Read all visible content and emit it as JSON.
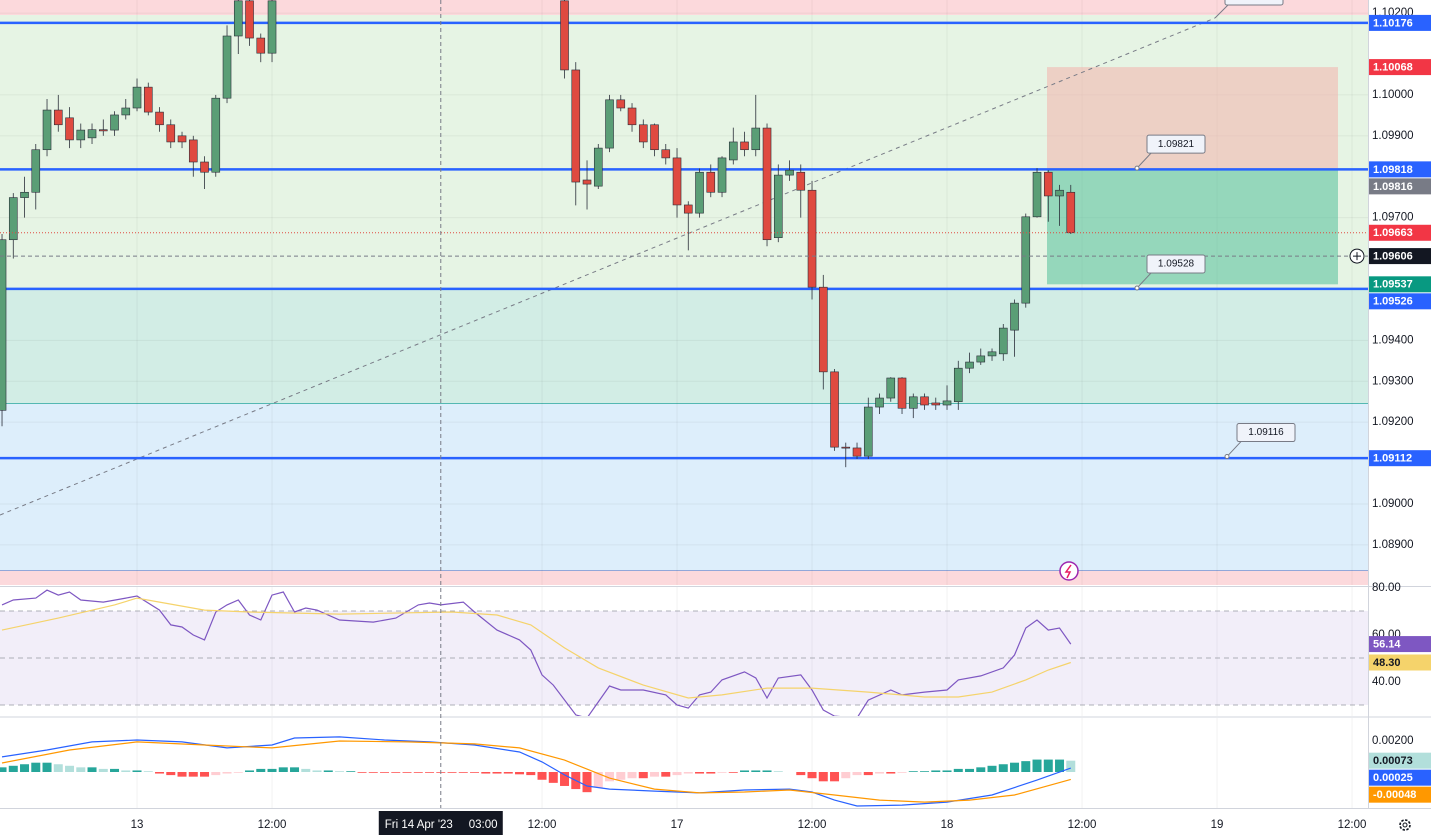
{
  "chart_data": [
    {
      "type": "candlestick",
      "open": [
        1.09229,
        1.09646,
        1.09749,
        1.09762,
        1.09866,
        1.09963,
        1.09944,
        1.0989,
        1.09895,
        1.09915,
        1.09914,
        1.09951,
        1.09968,
        1.10019,
        1.09958,
        1.09927,
        1.099,
        1.0989,
        1.09836,
        1.09811,
        1.09992,
        1.10144,
        1.1023,
        1.10139,
        1.10102,
        null,
        null,
        null,
        null,
        null,
        null,
        null,
        null,
        null,
        null,
        null,
        null,
        null,
        null,
        null,
        null,
        null,
        null,
        null,
        null,
        null,
        null,
        null,
        null,
        null,
        1.1023,
        1.10061,
        1.09792,
        1.09777,
        1.0987,
        1.09988,
        1.09968,
        1.09927,
        1.09927,
        1.09866,
        1.09846,
        1.09731,
        1.09711,
        1.09811,
        1.09762,
        1.09841,
        1.09885,
        1.09866,
        1.09919,
        1.09651,
        1.09804,
        1.09811,
        1.09767,
        1.0953,
        1.09323,
        1.09139,
        1.09137,
        1.09117,
        1.09237,
        1.09259,
        1.09308,
        1.09234,
        1.09262,
        1.09247,
        1.09242,
        1.0925,
        1.09332,
        1.09347,
        1.09362,
        1.09367,
        1.09425,
        1.09491,
        1.09702,
        1.09811,
        1.09753,
        1.09762
      ],
      "high": [
        1.0966,
        1.0976,
        1.098,
        1.0988,
        1.0999,
        1.1,
        1.0997,
        1.0993,
        1.0993,
        1.0994,
        1.0996,
        1.0999,
        1.1004,
        1.1003,
        1.0997,
        1.0994,
        1.0991,
        1.099,
        1.0985,
        1.1,
        1.1017,
        1.1025,
        1.1025,
        1.1015,
        1.1025,
        null,
        null,
        null,
        null,
        null,
        null,
        null,
        null,
        null,
        null,
        null,
        null,
        null,
        null,
        null,
        null,
        null,
        null,
        null,
        null,
        null,
        null,
        null,
        null,
        null,
        1.1025,
        1.1008,
        1.0984,
        1.0988,
        1.1,
        1.1,
        1.0998,
        1.0994,
        1.0993,
        1.0988,
        1.0987,
        1.0974,
        1.0982,
        1.0983,
        1.0985,
        1.0992,
        1.0991,
        1.1,
        1.0993,
        1.0983,
        1.0984,
        1.0983,
        1.0979,
        1.0956,
        1.0933,
        1.0915,
        1.0915,
        1.0926,
        1.0927,
        1.0931,
        1.0931,
        1.0927,
        1.0927,
        1.0926,
        1.0929,
        1.0935,
        1.0937,
        1.0938,
        1.0938,
        1.0944,
        1.095,
        1.0971,
        1.09821,
        1.09816,
        1.0978,
        1.0978
      ],
      "low": [
        1.0919,
        1.096,
        1.097,
        1.0972,
        1.0985,
        1.0991,
        1.0987,
        1.0987,
        1.0988,
        1.099,
        1.099,
        1.0994,
        1.0996,
        1.0995,
        1.0991,
        1.0987,
        1.0987,
        1.098,
        1.0977,
        1.098,
        1.0998,
        1.101,
        1.1012,
        1.1008,
        1.1008,
        null,
        null,
        null,
        null,
        null,
        null,
        null,
        null,
        null,
        null,
        null,
        null,
        null,
        null,
        null,
        null,
        null,
        null,
        null,
        null,
        null,
        null,
        null,
        null,
        null,
        1.1004,
        1.0973,
        1.0972,
        1.0977,
        1.0986,
        1.0996,
        1.0991,
        1.0987,
        1.0985,
        1.0983,
        1.097,
        1.0962,
        1.097,
        1.0975,
        1.0975,
        1.0983,
        1.0985,
        1.0985,
        1.0963,
        1.0964,
        1.0979,
        1.097,
        1.095,
        1.0928,
        1.0913,
        1.0909,
        1.0911,
        1.0911,
        1.0922,
        1.0925,
        1.0922,
        1.0921,
        1.0923,
        1.0923,
        1.0923,
        1.0923,
        1.0932,
        1.0934,
        1.0935,
        1.0935,
        1.0936,
        1.0948,
        1.097,
        1.0969,
        1.0968,
        1.0966
      ],
      "close": [
        1.09646,
        1.09749,
        1.09762,
        1.09866,
        1.09963,
        1.09927,
        1.0989,
        1.09914,
        1.09915,
        1.09912,
        1.09951,
        1.09968,
        1.10019,
        1.09958,
        1.09927,
        1.09885,
        1.09885,
        1.09836,
        1.09811,
        1.09992,
        1.10144,
        1.1023,
        1.10139,
        1.10102,
        1.1023,
        null,
        null,
        null,
        null,
        null,
        null,
        null,
        null,
        null,
        null,
        null,
        null,
        null,
        null,
        null,
        null,
        null,
        null,
        null,
        null,
        null,
        null,
        null,
        null,
        null,
        1.10061,
        1.09787,
        1.09782,
        1.0987,
        1.09988,
        1.09968,
        1.09927,
        1.09885,
        1.09866,
        1.09846,
        1.09731,
        1.09711,
        1.09811,
        1.09762,
        1.09846,
        1.09885,
        1.09866,
        1.09919,
        1.09646,
        1.09804,
        1.09816,
        1.09767,
        1.0953,
        1.09323,
        1.09139,
        1.09137,
        1.09117,
        1.09237,
        1.09259,
        1.09308,
        1.09234,
        1.09262,
        1.09242,
        1.09242,
        1.09252,
        1.09332,
        1.09347,
        1.09362,
        1.09372,
        1.0943,
        1.09491,
        1.09702,
        1.09811,
        1.09753,
        1.09767,
        1.09663
      ],
      "up_color": "#5a9e76",
      "down_color": "#df4a40",
      "ylim": [
        1.08802,
        1.10232
      ],
      "yticks": [
        {
          "value": 1.102,
          "label": "1.10200"
        },
        {
          "value": 1.1,
          "label": "1.10000"
        },
        {
          "value": 1.099,
          "label": "1.09900"
        },
        {
          "value": 1.097,
          "label": "1.09700"
        },
        {
          "value": 1.094,
          "label": "1.09400"
        },
        {
          "value": 1.093,
          "label": "1.09300"
        },
        {
          "value": 1.092,
          "label": "1.09200"
        },
        {
          "value": 1.09,
          "label": "1.09000"
        },
        {
          "value": 1.089,
          "label": "1.08900"
        }
      ],
      "xlim": [
        -0.18,
        121.42
      ],
      "xticks": [
        {
          "value": 12,
          "label": "13"
        },
        {
          "value": 24,
          "label": "12:00"
        },
        {
          "value": 48,
          "label": "12:00"
        },
        {
          "value": 60,
          "label": "17"
        },
        {
          "value": 72,
          "label": "12:00"
        },
        {
          "value": 84,
          "label": "18"
        },
        {
          "value": 96,
          "label": "12:00"
        },
        {
          "value": 108,
          "label": "19"
        },
        {
          "value": 120,
          "label": "12:00"
        }
      ],
      "crosshair": {
        "x": 39,
        "label": "Fri 14 Apr '23",
        "time": "03:00",
        "price": 1.09606
      },
      "levels": [
        1.10176,
        1.09818,
        1.09526,
        1.09112
      ],
      "level_color": "#2962ff",
      "position": {
        "entry": 1.09816,
        "stop": 1.10068,
        "target": 1.09537
      },
      "callouts": [
        1.09821,
        1.09528,
        1.09116
      ],
      "grid": true
    },
    {
      "type": "line",
      "series": [
        {
          "color": "#7e57c2",
          "x": [
            0,
            1,
            3,
            4,
            5,
            6,
            7,
            9,
            11,
            12,
            14,
            15,
            16,
            17,
            18,
            19,
            20,
            21,
            22,
            23,
            24,
            25,
            26,
            27,
            28,
            30,
            33,
            35,
            37,
            38,
            39,
            41,
            42,
            44,
            46,
            47,
            48,
            49,
            51,
            52,
            54,
            55,
            57,
            59,
            60,
            61,
            62,
            63,
            64,
            66,
            67,
            68,
            69,
            71,
            72,
            73,
            74,
            76,
            77,
            79,
            80,
            82,
            84,
            85,
            87,
            89,
            90,
            91,
            92,
            93,
            94,
            95
          ],
          "values": [
            72.8,
            74.9,
            75.7,
            79.1,
            77,
            78.3,
            74.9,
            74,
            75.7,
            76.6,
            70.6,
            64.3,
            63.4,
            60,
            57.9,
            69.8,
            72.8,
            74.9,
            68.5,
            66.4,
            77,
            78.3,
            69.8,
            71.5,
            70.6,
            66.4,
            65.5,
            67.2,
            72.8,
            73.6,
            72.8,
            74,
            69.8,
            62.1,
            57.9,
            53.6,
            43,
            38.7,
            26,
            24.7,
            38.3,
            36.6,
            36.6,
            34.5,
            30.2,
            28.9,
            34.5,
            35.7,
            40.9,
            44.3,
            41.7,
            33.2,
            41.7,
            43,
            36.6,
            28.1,
            25.5,
            24.7,
            32.3,
            36.6,
            34.5,
            35.7,
            36.6,
            40.9,
            42.6,
            46,
            51.5,
            63,
            66.4,
            62.1,
            63,
            56.14
          ]
        },
        {
          "color": "#f5d36b",
          "x": [
            0,
            5,
            10,
            12,
            14,
            18,
            22,
            30,
            40,
            44,
            47,
            50,
            53,
            57,
            61,
            64,
            68,
            72,
            77,
            82,
            85,
            88,
            91,
            93,
            95
          ],
          "values": [
            62.1,
            67.2,
            72.8,
            75.7,
            74,
            70.6,
            69.8,
            68.9,
            69.8,
            68.5,
            64.3,
            54.5,
            46,
            38.7,
            33.2,
            34.5,
            37.4,
            37.4,
            35.7,
            33.6,
            33.6,
            35.7,
            40.9,
            45.1,
            48.3
          ],
          "value_labels": [
            null,
            null,
            null,
            null,
            null,
            null,
            null,
            null,
            null,
            null,
            null,
            null,
            null,
            null,
            null,
            null,
            null,
            null,
            null,
            null,
            null,
            null,
            null,
            null,
            "48.30"
          ]
        }
      ],
      "ylim": [
        25.53,
        81.28
      ],
      "yticks": [
        {
          "value": 80,
          "label": "80.00"
        },
        {
          "value": 60,
          "label": "60.00"
        },
        {
          "value": 40,
          "label": "40.00"
        }
      ]
    },
    {
      "type": "macd",
      "series": [
        {
          "color": "#2962ff",
          "x": [
            0,
            4,
            8,
            12,
            16,
            20,
            24,
            26,
            30,
            34,
            38,
            42,
            46,
            48,
            50,
            52,
            54,
            58,
            62,
            66,
            70,
            72,
            74,
            76,
            80,
            84,
            88,
            92,
            95
          ],
          "values": [
            0.00097,
            0.00142,
            0.00194,
            0.00206,
            0.00194,
            0.00155,
            0.00174,
            0.00219,
            0.00226,
            0.00206,
            0.00194,
            0.00174,
            0.00129,
            0.00065,
            -0.00019,
            -0.0009,
            -0.0011,
            -0.00123,
            -0.00135,
            -0.00116,
            -0.0011,
            -0.00129,
            -0.00181,
            -0.00219,
            -0.00213,
            -0.00194,
            -0.00148,
            -0.00052,
            0.00025
          ]
        },
        {
          "color": "#ff9800",
          "x": [
            0,
            6,
            12,
            18,
            24,
            30,
            36,
            42,
            46,
            50,
            54,
            58,
            62,
            66,
            70,
            74,
            78,
            82,
            86,
            90,
            95
          ],
          "values": [
            0.00058,
            0.00142,
            0.00194,
            0.00174,
            0.00155,
            0.002,
            0.00194,
            0.00181,
            0.00155,
            0.00077,
            -0.00039,
            -0.0011,
            -0.00135,
            -0.00129,
            -0.00116,
            -0.00148,
            -0.00181,
            -0.00194,
            -0.00181,
            -0.00148,
            -0.00048
          ]
        }
      ],
      "histogram": [
        0.0003,
        0.0004,
        0.0005,
        0.0006,
        0.0006,
        0.0005,
        0.0004,
        0.0003,
        0.0003,
        0.0002,
        0.0002,
        0.0001,
        0.0001,
        5e-05,
        -0.0001,
        -0.0002,
        -0.0003,
        -0.0003,
        -0.0003,
        -0.0002,
        -0.0001,
        -5e-05,
        0.0001,
        0.0002,
        0.0002,
        0.0003,
        0.0003,
        0.0002,
        0.0001,
        0.0001,
        5e-05,
        5e-05,
        -5e-05,
        -5e-05,
        -5e-05,
        -5e-05,
        -5e-05,
        -5e-05,
        -5e-05,
        -5e-05,
        -5e-05,
        -5e-05,
        -5e-05,
        -0.0001,
        -0.0001,
        -0.0001,
        -0.00015,
        -0.0002,
        -0.0005,
        -0.0007,
        -0.0009,
        -0.0011,
        -0.0013,
        -0.001,
        -0.0006,
        -0.0005,
        -0.0004,
        -0.0004,
        -0.0003,
        -0.0003,
        -0.0002,
        -0.0001,
        -0.0001,
        -0.0001,
        -5e-05,
        -5e-05,
        0.0001,
        0.0001,
        0.0001,
        5e-05,
        0,
        -0.0002,
        -0.0004,
        -0.0006,
        -0.0006,
        -0.0004,
        -0.0002,
        -0.0002,
        -0.0001,
        -0.0001,
        -5e-05,
        5e-05,
        5e-05,
        0.0001,
        0.0001,
        0.0002,
        0.0002,
        0.0003,
        0.0004,
        0.0005,
        0.0006,
        0.0007,
        0.0008,
        0.0008,
        0.0008,
        0.00073
      ],
      "histogram_colors": [
        "#26a69a",
        "#b2dfdb",
        "#ff5252",
        "#ffcdd2"
      ],
      "ylim": [
        -0.00232,
        0.00348
      ],
      "yticks": [
        {
          "value": 0.002,
          "label": "0.00200"
        }
      ]
    }
  ]
}
